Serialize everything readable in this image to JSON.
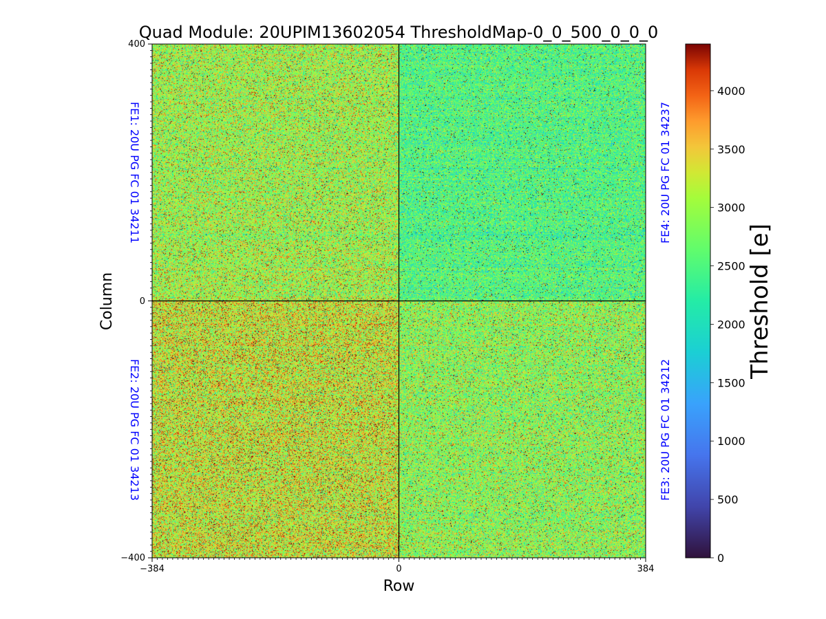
{
  "chart_data": {
    "type": "heatmap",
    "title": "Quad Module: 20UPIM13602054 ThresholdMap-0_0_500_0_0_0",
    "xlabel": "Row",
    "ylabel": "Column",
    "xlim": [
      -384,
      384
    ],
    "ylim": [
      -400,
      400
    ],
    "x_ticks": [
      "−384",
      "0",
      "384"
    ],
    "y_ticks": [
      "400",
      "0",
      "−400"
    ],
    "colorbar": {
      "label": "Threshold [e]",
      "range": [
        0,
        4400
      ],
      "colormap": "turbo",
      "ticks": [
        "0",
        "500",
        "1000",
        "1500",
        "2000",
        "2500",
        "3000",
        "3500",
        "4000"
      ]
    },
    "quadrants": [
      {
        "name": "FE1",
        "label": "FE1: 20U PG FC 01 34211",
        "position": "top-left",
        "mean_threshold": 3000,
        "spread": 520
      },
      {
        "name": "FE2",
        "label": "FE2: 20U PG FC 01 34213",
        "position": "bottom-left",
        "mean_threshold": 3250,
        "spread": 560
      },
      {
        "name": "FE3",
        "label": "FE3: 20U PG FC 01 34212",
        "position": "bottom-right",
        "mean_threshold": 2900,
        "spread": 520
      },
      {
        "name": "FE4",
        "label": "FE4: 20U PG FC 01 34237",
        "position": "top-right",
        "mean_threshold": 2500,
        "spread": 450
      }
    ]
  }
}
